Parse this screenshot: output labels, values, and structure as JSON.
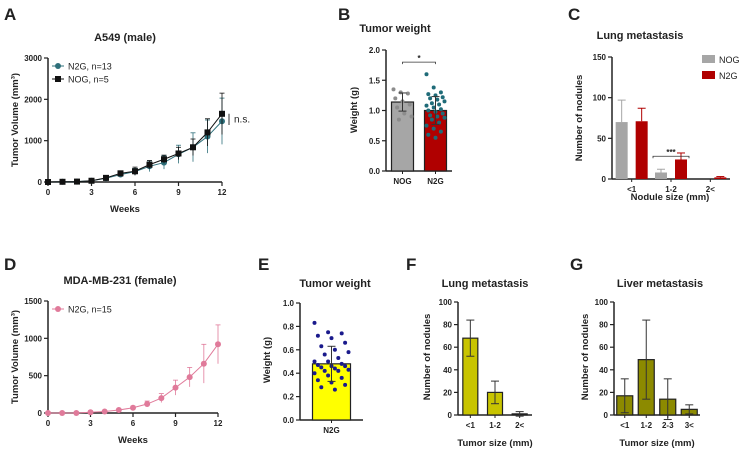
{
  "chart_data": [
    {
      "panel": "A",
      "type": "line",
      "title": "A549 (male)",
      "xlabel": "Weeks",
      "ylabel": "Tumor Volume (mm³)",
      "xlim": [
        0,
        12
      ],
      "xticks": [
        0,
        3,
        6,
        9,
        12
      ],
      "ylim": [
        0,
        3000
      ],
      "yticks": [
        0,
        1000,
        2000,
        3000
      ],
      "legend": "top-left",
      "annotation": "n.s.",
      "x": [
        0,
        1,
        2,
        3,
        4,
        5,
        6,
        7,
        8,
        9,
        10,
        11,
        12
      ],
      "series": [
        {
          "name": "N2G, n=13",
          "color": "#2e6f7a",
          "marker": "circle",
          "values": [
            0,
            5,
            10,
            30,
            90,
            180,
            250,
            380,
            470,
            670,
            840,
            1100,
            1470
          ],
          "errors": [
            0,
            5,
            8,
            15,
            30,
            60,
            80,
            130,
            160,
            220,
            350,
            400,
            560
          ]
        },
        {
          "name": "NOG, n=5",
          "color": "#111111",
          "marker": "square",
          "values": [
            0,
            5,
            10,
            30,
            100,
            210,
            260,
            420,
            550,
            690,
            840,
            1200,
            1650
          ],
          "errors": [
            0,
            5,
            8,
            15,
            30,
            50,
            100,
            100,
            100,
            150,
            200,
            330,
            500
          ]
        }
      ]
    },
    {
      "panel": "B",
      "type": "bar",
      "title": "Tumor weight",
      "ylabel": "Weight  (g)",
      "ylim": [
        0,
        2.0
      ],
      "yticks": [
        "0.0",
        "0.5",
        "1.0",
        "1.5",
        "2.0"
      ],
      "categories": [
        "NOG",
        "N2G"
      ],
      "annotation": "*",
      "values": [
        1.14,
        1.0
      ],
      "errors": [
        0.15,
        0.23
      ],
      "colors": [
        "#a6a6a6",
        "#b00000"
      ],
      "point_colors": [
        "#8c8c8c",
        "#1f6b78"
      ],
      "points": [
        [
          1.35,
          1.3,
          1.28,
          1.2,
          1.15,
          1.1,
          1.05,
          0.95,
          0.9,
          0.85
        ],
        [
          1.6,
          1.38,
          1.3,
          1.27,
          1.25,
          1.22,
          1.2,
          1.18,
          1.15,
          1.12,
          1.1,
          1.08,
          1.05,
          1.02,
          1.0,
          0.98,
          0.95,
          0.92,
          0.9,
          0.88,
          0.85,
          0.8,
          0.75,
          0.7,
          0.65,
          0.6,
          0.55
        ]
      ]
    },
    {
      "panel": "C",
      "type": "bar",
      "title": "Lung metastasis",
      "xlabel": "Nodule size (mm)",
      "ylabel": "Number of nodules",
      "ylim": [
        0,
        150
      ],
      "yticks": [
        0,
        50,
        100,
        150
      ],
      "categories": [
        "<1",
        "1-2",
        "2<"
      ],
      "legend": "top-right",
      "annotation": "***",
      "series": [
        {
          "name": "NOG",
          "color": "#a6a6a6",
          "values": [
            70,
            8,
            0
          ],
          "errors": [
            27,
            4,
            0
          ]
        },
        {
          "name": "N2G",
          "color": "#b00000",
          "values": [
            71,
            24,
            2
          ],
          "errors": [
            16,
            8,
            1
          ]
        }
      ]
    },
    {
      "panel": "D",
      "type": "line",
      "title": "MDA-MB-231 (female)",
      "xlabel": "Weeks",
      "ylabel": "Tumor Volume (mm³)",
      "xlim": [
        0,
        12
      ],
      "xticks": [
        0,
        3,
        6,
        9,
        12
      ],
      "ylim": [
        0,
        1500
      ],
      "yticks": [
        0,
        500,
        1000,
        1500
      ],
      "legend": "top-left",
      "x": [
        0,
        1,
        2,
        3,
        4,
        5,
        6,
        7,
        8,
        9,
        10,
        11,
        12
      ],
      "series": [
        {
          "name": "N2G, n=15",
          "color": "#e07a9a",
          "marker": "circle",
          "values": [
            0,
            0,
            0,
            10,
            20,
            40,
            70,
            120,
            200,
            340,
            480,
            660,
            920
          ],
          "errors": [
            0,
            0,
            0,
            5,
            8,
            12,
            20,
            40,
            60,
            100,
            130,
            260,
            260
          ]
        }
      ]
    },
    {
      "panel": "E",
      "type": "bar",
      "title": "Tumor weight",
      "ylabel": "Weight  (g)",
      "ylim": [
        0,
        1.0
      ],
      "yticks": [
        "0.0",
        "0.2",
        "0.4",
        "0.6",
        "0.8",
        "1.0"
      ],
      "categories": [
        "N2G"
      ],
      "values": [
        0.48
      ],
      "errors": [
        0.15
      ],
      "colors": [
        "#ffff00"
      ],
      "point_colors": [
        "#1a1a8c"
      ],
      "points": [
        [
          0.83,
          0.75,
          0.74,
          0.72,
          0.7,
          0.66,
          0.63,
          0.6,
          0.58,
          0.56,
          0.53,
          0.5,
          0.5,
          0.48,
          0.47,
          0.46,
          0.46,
          0.45,
          0.44,
          0.43,
          0.42,
          0.42,
          0.4,
          0.38,
          0.36,
          0.34,
          0.32,
          0.3,
          0.28,
          0.26
        ]
      ]
    },
    {
      "panel": "F",
      "type": "bar",
      "title": "Lung metastasis",
      "xlabel": "Tumor size (mm)",
      "ylabel": "Number of nodules",
      "ylim": [
        0,
        100
      ],
      "yticks": [
        0,
        20,
        40,
        60,
        80,
        100
      ],
      "categories": [
        "<1",
        "1-2",
        "2<"
      ],
      "values": [
        68,
        20,
        1
      ],
      "errors": [
        16,
        10,
        2
      ],
      "colors": [
        "#c8c400"
      ]
    },
    {
      "panel": "G",
      "type": "bar",
      "title": "Liver metastasis",
      "xlabel": "Tumor size (mm)",
      "ylabel": "Number of nodules",
      "ylim": [
        0,
        100
      ],
      "yticks": [
        0,
        20,
        40,
        60,
        80,
        100
      ],
      "categories": [
        "<1",
        "1-2",
        "2-3",
        "3<"
      ],
      "values": [
        17,
        49,
        14,
        5
      ],
      "errors": [
        15,
        35,
        18,
        4
      ],
      "colors": [
        "#8c8a00"
      ]
    }
  ]
}
